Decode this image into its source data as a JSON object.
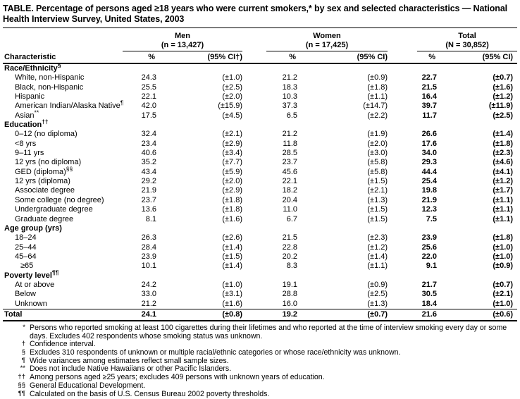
{
  "title": "TABLE. Percentage of persons aged ≥18 years who were current smokers,* by sex and selected characteristics — National Health Interview Survey, United States, 2003",
  "header": {
    "characteristic_label": "Characteristic",
    "groups": [
      {
        "name": "Men",
        "n": "(n = 13,427)",
        "pct": "%",
        "ci": "(95% CI†)"
      },
      {
        "name": "Women",
        "n": "(n = 17,425)",
        "pct": "%",
        "ci": "(95% CI)"
      },
      {
        "name": "Total",
        "n": "(N = 30,852)",
        "pct": "%",
        "ci": "(95% CI)"
      }
    ]
  },
  "sections": [
    {
      "header": "Race/Ethnicity",
      "sup": "§",
      "rows": [
        {
          "label": "White, non-Hispanic",
          "sup": "",
          "indent": 1,
          "men_pct": "24.3",
          "men_ci": "(±1.0)",
          "women_pct": "21.2",
          "women_ci": "(±0.9)",
          "total_pct": "22.7",
          "total_ci": "(±0.7)"
        },
        {
          "label": "Black, non-Hispanic",
          "sup": "",
          "indent": 1,
          "men_pct": "25.5",
          "men_ci": "(±2.5)",
          "women_pct": "18.3",
          "women_ci": "(±1.8)",
          "total_pct": "21.5",
          "total_ci": "(±1.6)"
        },
        {
          "label": "Hispanic",
          "sup": "",
          "indent": 1,
          "men_pct": "22.1",
          "men_ci": "(±2.0)",
          "women_pct": "10.3",
          "women_ci": "(±1.1)",
          "total_pct": "16.4",
          "total_ci": "(±1.2)"
        },
        {
          "label": "American Indian/Alaska Native",
          "sup": "¶",
          "indent": 1,
          "men_pct": "42.0",
          "men_ci": "(±15.9)",
          "women_pct": "37.3",
          "women_ci": "(±14.7)",
          "total_pct": "39.7",
          "total_ci": "(±11.9)"
        },
        {
          "label": "Asian",
          "sup": "**",
          "indent": 1,
          "men_pct": "17.5",
          "men_ci": "(±4.5)",
          "women_pct": "6.5",
          "women_ci": "(±2.2)",
          "total_pct": "11.7",
          "total_ci": "(±2.5)"
        }
      ]
    },
    {
      "header": "Education",
      "sup": "††",
      "rows": [
        {
          "label": "0–12 (no diploma)",
          "sup": "",
          "indent": 1,
          "men_pct": "32.4",
          "men_ci": "(±2.1)",
          "women_pct": "21.2",
          "women_ci": "(±1.9)",
          "total_pct": "26.6",
          "total_ci": "(±1.4)"
        },
        {
          "label": "<8 yrs",
          "sup": "",
          "indent": 1,
          "men_pct": "23.4",
          "men_ci": "(±2.9)",
          "women_pct": "11.8",
          "women_ci": "(±2.0)",
          "total_pct": "17.6",
          "total_ci": "(±1.8)"
        },
        {
          "label": "9–11 yrs",
          "sup": "",
          "indent": 1,
          "men_pct": "40.6",
          "men_ci": "(±3.4)",
          "women_pct": "28.5",
          "women_ci": "(±3.0)",
          "total_pct": "34.0",
          "total_ci": "(±2.3)"
        },
        {
          "label": "12 yrs (no diploma)",
          "sup": "",
          "indent": 1,
          "men_pct": "35.2",
          "men_ci": "(±7.7)",
          "women_pct": "23.7",
          "women_ci": "(±5.8)",
          "total_pct": "29.3",
          "total_ci": "(±4.6)"
        },
        {
          "label": "GED (diploma)",
          "sup": "§§",
          "indent": 1,
          "men_pct": "43.4",
          "men_ci": "(±5.9)",
          "women_pct": "45.6",
          "women_ci": "(±5.8)",
          "total_pct": "44.4",
          "total_ci": "(±4.1)"
        },
        {
          "label": "12 yrs (diploma)",
          "sup": "",
          "indent": 1,
          "men_pct": "29.2",
          "men_ci": "(±2.0)",
          "women_pct": "22.1",
          "women_ci": "(±1.5)",
          "total_pct": "25.4",
          "total_ci": "(±1.2)"
        },
        {
          "label": "Associate degree",
          "sup": "",
          "indent": 1,
          "men_pct": "21.9",
          "men_ci": "(±2.9)",
          "women_pct": "18.2",
          "women_ci": "(±2.1)",
          "total_pct": "19.8",
          "total_ci": "(±1.7)"
        },
        {
          "label": "Some college (no degree)",
          "sup": "",
          "indent": 1,
          "men_pct": "23.7",
          "men_ci": "(±1.8)",
          "women_pct": "20.4",
          "women_ci": "(±1.3)",
          "total_pct": "21.9",
          "total_ci": "(±1.1)"
        },
        {
          "label": "Undergraduate degree",
          "sup": "",
          "indent": 1,
          "men_pct": "13.6",
          "men_ci": "(±1.8)",
          "women_pct": "11.0",
          "women_ci": "(±1.5)",
          "total_pct": "12.3",
          "total_ci": "(±1.1)"
        },
        {
          "label": "Graduate degree",
          "sup": "",
          "indent": 1,
          "men_pct": "8.1",
          "men_ci": "(±1.6)",
          "women_pct": "6.7",
          "women_ci": "(±1.5)",
          "total_pct": "7.5",
          "total_ci": "(±1.1)"
        }
      ]
    },
    {
      "header": "Age group (yrs)",
      "sup": "",
      "rows": [
        {
          "label": "18–24",
          "sup": "",
          "indent": 1,
          "men_pct": "26.3",
          "men_ci": "(±2.6)",
          "women_pct": "21.5",
          "women_ci": "(±2.3)",
          "total_pct": "23.9",
          "total_ci": "(±1.8)"
        },
        {
          "label": "25–44",
          "sup": "",
          "indent": 1,
          "men_pct": "28.4",
          "men_ci": "(±1.4)",
          "women_pct": "22.8",
          "women_ci": "(±1.2)",
          "total_pct": "25.6",
          "total_ci": "(±1.0)"
        },
        {
          "label": "45–64",
          "sup": "",
          "indent": 1,
          "men_pct": "23.9",
          "men_ci": "(±1.5)",
          "women_pct": "20.2",
          "women_ci": "(±1.4)",
          "total_pct": "22.0",
          "total_ci": "(±1.0)"
        },
        {
          "label": "≥65",
          "sup": "",
          "indent": 2,
          "men_pct": "10.1",
          "men_ci": "(±1.4)",
          "women_pct": "8.3",
          "women_ci": "(±1.1)",
          "total_pct": "9.1",
          "total_ci": "(±0.9)"
        }
      ]
    },
    {
      "header": "Poverty level",
      "sup": "¶¶",
      "rows": [
        {
          "label": "At or above",
          "sup": "",
          "indent": 1,
          "men_pct": "24.2",
          "men_ci": "(±1.0)",
          "women_pct": "19.1",
          "women_ci": "(±0.9)",
          "total_pct": "21.7",
          "total_ci": "(±0.7)"
        },
        {
          "label": "Below",
          "sup": "",
          "indent": 1,
          "men_pct": "33.0",
          "men_ci": "(±3.1)",
          "women_pct": "28.8",
          "women_ci": "(±2.5)",
          "total_pct": "30.5",
          "total_ci": "(±2.1)"
        },
        {
          "label": "Unknown",
          "sup": "",
          "indent": 1,
          "men_pct": "21.2",
          "men_ci": "(±1.6)",
          "women_pct": "16.0",
          "women_ci": "(±1.3)",
          "total_pct": "18.4",
          "total_ci": "(±1.0)"
        }
      ]
    }
  ],
  "total_row": {
    "label": "Total",
    "men_pct": "24.1",
    "men_ci": "(±0.8)",
    "women_pct": "19.2",
    "women_ci": "(±0.7)",
    "total_pct": "21.6",
    "total_ci": "(±0.6)"
  },
  "footnotes": [
    {
      "marker": "*",
      "text": "Persons who reported smoking at least 100 cigarettes during their lifetimes and who reported at the time of interview smoking every day or some days. Excludes 402 respondents whose smoking status was unknown."
    },
    {
      "marker": "†",
      "text": "Confidence interval."
    },
    {
      "marker": "§",
      "text": "Excludes 310 respondents of unknown or multiple racial/ethnic categories or whose race/ethnicity was unknown."
    },
    {
      "marker": "¶",
      "text": "Wide variances among estimates reflect small sample sizes."
    },
    {
      "marker": "**",
      "text": "Does not include Native Hawaiians or other Pacific Islanders."
    },
    {
      "marker": "††",
      "text": "Among persons aged ≥25 years; excludes 409 persons with unknown years of education."
    },
    {
      "marker": "§§",
      "text": "General Educational Development."
    },
    {
      "marker": "¶¶",
      "text": "Calculated on the basis of U.S. Census Bureau 2002 poverty thresholds."
    }
  ]
}
